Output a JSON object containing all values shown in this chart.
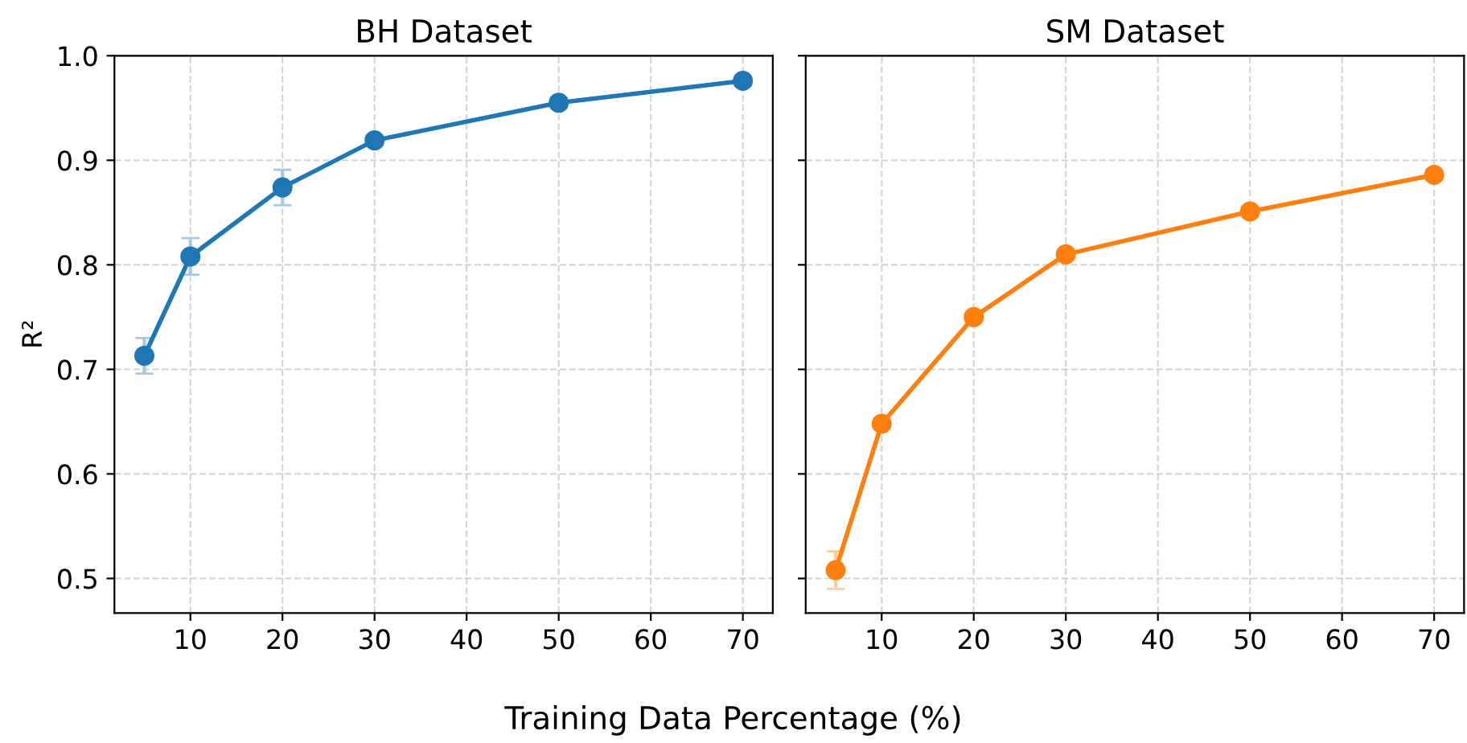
{
  "chart_data": [
    {
      "type": "line",
      "title": "BH Dataset",
      "xlabel": "Training Data Percentage (%)",
      "ylabel": "R²",
      "x": [
        5,
        10,
        20,
        30,
        50,
        70
      ],
      "series": [
        {
          "color": "#1f77b4",
          "values": [
            0.713,
            0.808,
            0.874,
            0.919,
            0.955,
            0.976
          ],
          "errors": [
            0.017,
            0.0175,
            0.017,
            0.005,
            0.005,
            0.005
          ]
        }
      ],
      "xlim": [
        1.75,
        73.25
      ],
      "xticks": [
        10,
        20,
        30,
        40,
        50,
        60,
        70
      ],
      "ylim": [
        0.467,
        1.0
      ],
      "yticks": [
        0.5,
        0.6,
        0.7,
        0.8,
        0.9,
        {
          "value": 1,
          "label": "1.0"
        }
      ],
      "grid": true,
      "marker": "circle",
      "line_style": "solid"
    },
    {
      "type": "line",
      "title": "SM Dataset",
      "x": [
        5,
        10,
        20,
        30,
        50,
        70
      ],
      "series": [
        {
          "color": "#ff7f0e",
          "values": [
            0.508,
            0.648,
            0.75,
            0.81,
            0.851,
            0.886
          ],
          "errors": [
            0.018,
            0.005,
            0.005,
            0.005,
            0.005,
            0.005
          ]
        }
      ],
      "xlim": [
        1.75,
        73.25
      ],
      "xticks": [
        10,
        20,
        30,
        40,
        50,
        60,
        70
      ],
      "ylim": [
        0.467,
        1.0
      ],
      "yticks": [
        0.5,
        0.6,
        0.7,
        0.8,
        0.9,
        1.0
      ],
      "grid": true,
      "marker": "circle",
      "line_style": "solid",
      "tick_labels": "x"
    }
  ]
}
